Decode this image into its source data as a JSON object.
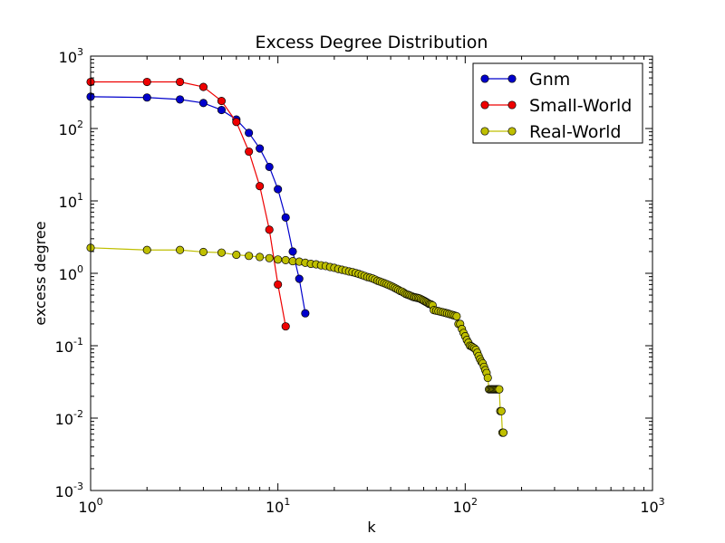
{
  "chart_data": {
    "type": "line",
    "title": "Excess Degree Distribution",
    "xlabel": "k",
    "ylabel": "excess degree",
    "xscale": "log",
    "yscale": "log",
    "xlim": [
      1,
      1000
    ],
    "ylim": [
      0.001,
      1000
    ],
    "x_ticks": [
      {
        "base": "10",
        "exp": "0",
        "value": 1
      },
      {
        "base": "10",
        "exp": "1",
        "value": 10
      },
      {
        "base": "10",
        "exp": "2",
        "value": 100
      },
      {
        "base": "10",
        "exp": "3",
        "value": 1000
      }
    ],
    "y_ticks": [
      {
        "base": "10",
        "exp": "-3",
        "value": 0.001
      },
      {
        "base": "10",
        "exp": "-2",
        "value": 0.01
      },
      {
        "base": "10",
        "exp": "-1",
        "value": 0.1
      },
      {
        "base": "10",
        "exp": "0",
        "value": 1
      },
      {
        "base": "10",
        "exp": "1",
        "value": 10
      },
      {
        "base": "10",
        "exp": "2",
        "value": 100
      },
      {
        "base": "10",
        "exp": "3",
        "value": 1000
      }
    ],
    "grid": false,
    "legend_position": "top-right",
    "series": [
      {
        "name": "Gnm",
        "color": "#0000cc",
        "x": [
          1,
          2,
          3,
          4,
          5,
          6,
          7,
          8,
          9,
          10,
          11,
          12,
          13,
          14
        ],
        "y": [
          275,
          268,
          252,
          225,
          180,
          133,
          87,
          53,
          29.5,
          14.5,
          5.9,
          2.0,
          0.84,
          0.28
        ]
      },
      {
        "name": "Small-World",
        "color": "#ee0000",
        "x": [
          1,
          2,
          3,
          4,
          5,
          6,
          7,
          8,
          9,
          10,
          11
        ],
        "y": [
          440,
          440,
          440,
          375,
          240,
          123,
          48,
          16,
          4.0,
          0.7,
          0.185
        ]
      },
      {
        "name": "Real-World",
        "color": "#bfbf00",
        "x": [
          1,
          2,
          3,
          4,
          5,
          6,
          7,
          8,
          9,
          10,
          11,
          12,
          13,
          14,
          15,
          16,
          17,
          18,
          19,
          20,
          21,
          22,
          23,
          24,
          25,
          26,
          27,
          28,
          29,
          30,
          31,
          32,
          33,
          34,
          35,
          36,
          37,
          38,
          39,
          40,
          41,
          42,
          43,
          44,
          45,
          46,
          47,
          48,
          49,
          50,
          51,
          52,
          53,
          54,
          55,
          56,
          57,
          58,
          59,
          60,
          61,
          62,
          63,
          64,
          65,
          66,
          67,
          68,
          70,
          72,
          74,
          76,
          78,
          80,
          82,
          84,
          86,
          88,
          90,
          92,
          94,
          96,
          98,
          100,
          102,
          104,
          106,
          108,
          110,
          112,
          114,
          116,
          118,
          120,
          122,
          124,
          126,
          128,
          130,
          132,
          134,
          136,
          138,
          140,
          142,
          144,
          146,
          148,
          150,
          152,
          154,
          156,
          158,
          160
        ],
        "y": [
          2.25,
          2.1,
          2.1,
          1.97,
          1.93,
          1.8,
          1.74,
          1.68,
          1.62,
          1.55,
          1.52,
          1.47,
          1.45,
          1.4,
          1.35,
          1.33,
          1.29,
          1.26,
          1.22,
          1.19,
          1.15,
          1.12,
          1.09,
          1.06,
          1.04,
          1.01,
          0.98,
          0.95,
          0.92,
          0.89,
          0.87,
          0.85,
          0.82,
          0.79,
          0.77,
          0.75,
          0.73,
          0.71,
          0.69,
          0.67,
          0.65,
          0.63,
          0.61,
          0.59,
          0.57,
          0.56,
          0.54,
          0.52,
          0.51,
          0.5,
          0.49,
          0.48,
          0.47,
          0.465,
          0.46,
          0.455,
          0.45,
          0.44,
          0.43,
          0.42,
          0.41,
          0.4,
          0.39,
          0.38,
          0.375,
          0.37,
          0.36,
          0.31,
          0.305,
          0.3,
          0.295,
          0.29,
          0.285,
          0.28,
          0.275,
          0.27,
          0.265,
          0.26,
          0.255,
          0.2,
          0.2,
          0.17,
          0.15,
          0.135,
          0.12,
          0.11,
          0.1,
          0.098,
          0.095,
          0.092,
          0.088,
          0.08,
          0.072,
          0.065,
          0.06,
          0.057,
          0.051,
          0.046,
          0.042,
          0.036,
          0.025,
          0.025,
          0.025,
          0.025,
          0.025,
          0.025,
          0.025,
          0.025,
          0.025,
          0.025,
          0.0125,
          0.0125,
          0.0063,
          0.0063
        ]
      }
    ]
  }
}
